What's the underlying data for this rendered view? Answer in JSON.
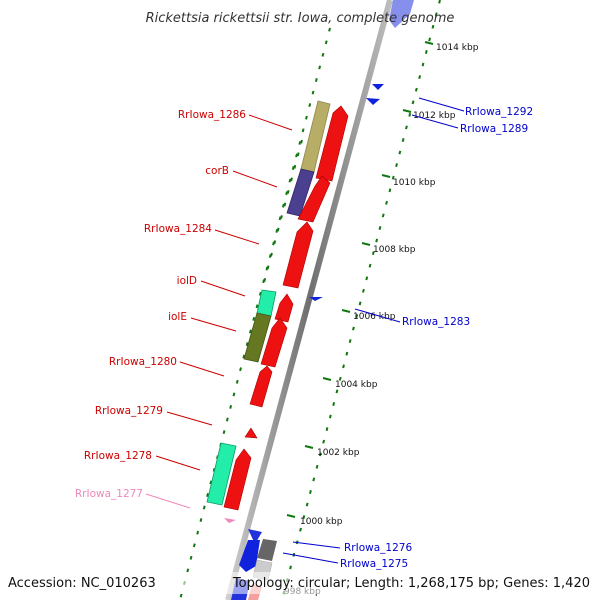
{
  "title": "Rickettsia rickettsii str. Iowa, complete genome",
  "footer": {
    "accession": "Accession: NC_010263",
    "summary": "Topology: circular; Length: 1,268,175 bp; Genes: 1,420"
  },
  "kbp_ticks": [
    "1014 kbp",
    "1012 kbp",
    "1010 kbp",
    "1008 kbp",
    "1006 kbp",
    "1004 kbp",
    "1002 kbp",
    "1000 kbp",
    "998 kbp"
  ],
  "labels_left": [
    {
      "text": "RrIowa_1286",
      "color": "#cc0000"
    },
    {
      "text": "corB",
      "color": "#cc0000"
    },
    {
      "text": "RrIowa_1284",
      "color": "#cc0000"
    },
    {
      "text": "iolD",
      "color": "#cc0000"
    },
    {
      "text": "iolE",
      "color": "#cc0000"
    },
    {
      "text": "RrIowa_1280",
      "color": "#cc0000"
    },
    {
      "text": "RrIowa_1279",
      "color": "#cc0000"
    },
    {
      "text": "RrIowa_1278",
      "color": "#cc0000"
    },
    {
      "text": "RrIowa_1277",
      "color": "#ee88bb"
    }
  ],
  "labels_right": [
    {
      "text": "RrIowa_1292",
      "color": "#0000cc"
    },
    {
      "text": "RrIowa_1289",
      "color": "#0000cc"
    },
    {
      "text": "RrIowa_1283",
      "color": "#0000cc"
    },
    {
      "text": "RrIowa_1276",
      "color": "#0000cc"
    },
    {
      "text": "RrIowa_1275",
      "color": "#0000cc"
    }
  ],
  "colors": {
    "forward_gene": "#ee1111",
    "reverse_gene": "#1122dd",
    "tick_dots": "#117711",
    "backbone": "#888888",
    "cog_tan": "#b8ad66",
    "cog_purple": "#4b3f8f",
    "cog_teal": "#22dd99",
    "cog_olive": "#667722"
  }
}
